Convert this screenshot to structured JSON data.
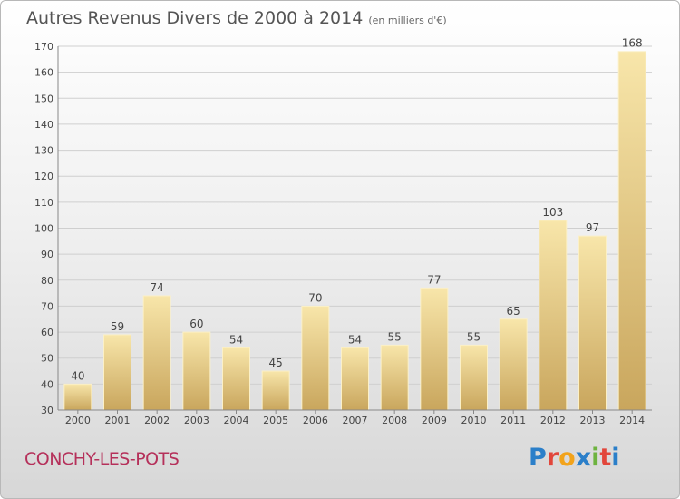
{
  "title": "Autres Revenus Divers de 2000 à 2014",
  "subtitle": "(en milliers d'€)",
  "commune": "CONCHY-LES-POTS",
  "logo": {
    "letters": [
      "P",
      "r",
      "o",
      "x",
      "i",
      "t",
      "i"
    ],
    "colors": [
      "#2b7fc9",
      "#e2463b",
      "#f2a31b",
      "#2b7fc9",
      "#6db33f",
      "#e2463b",
      "#2b7fc9"
    ]
  },
  "colors": {
    "bar": "#e8cf86",
    "bar_light": "#f6e3a6",
    "commune": "#b5305a"
  },
  "chart_data": {
    "type": "bar",
    "categories": [
      "2000",
      "2001",
      "2002",
      "2003",
      "2004",
      "2005",
      "2006",
      "2007",
      "2008",
      "2009",
      "2010",
      "2011",
      "2012",
      "2013",
      "2014"
    ],
    "values": [
      40,
      59,
      74,
      60,
      54,
      45,
      70,
      54,
      55,
      77,
      55,
      65,
      103,
      97,
      168
    ],
    "ylim": [
      30,
      170
    ],
    "yticks": [
      30,
      40,
      50,
      60,
      70,
      80,
      90,
      100,
      110,
      120,
      130,
      140,
      150,
      160,
      170
    ],
    "grid": true
  }
}
